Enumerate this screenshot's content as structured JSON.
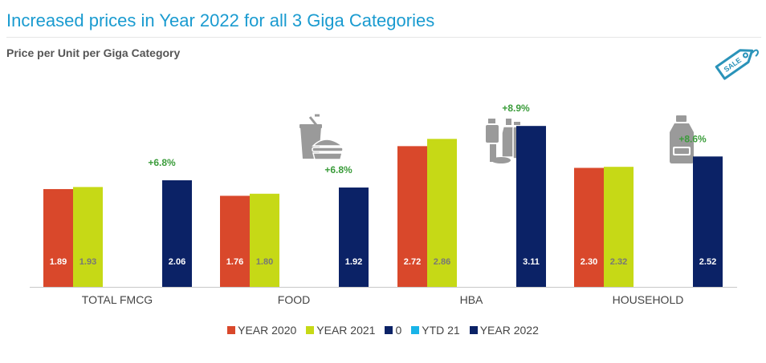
{
  "header": {
    "title": "Increased prices in Year 2022 for all 3 Giga Categories",
    "subtitle": "Price per Unit per Giga Category"
  },
  "icons": {
    "sale_tag_text": "SALE",
    "food": "food-icon",
    "hba": "hba-icon",
    "household": "household-icon",
    "sale": "sale-tag-icon"
  },
  "colors": {
    "year2020": "#d9482b",
    "year2021": "#c6d916",
    "zero": "#0b2266",
    "ytd21": "#19b4e8",
    "year2022": "#0b2266",
    "growth": "#3a9c3a",
    "icon": "#9a9a9a",
    "sale": "#2a93b9"
  },
  "chart_data": {
    "type": "bar",
    "categories": [
      "TOTAL FMCG",
      "FOOD",
      "HBA",
      "HOUSEHOLD"
    ],
    "series": [
      {
        "name": "YEAR 2020",
        "values": [
          1.89,
          1.76,
          2.72,
          2.3
        ],
        "labels": [
          "1.89",
          "1.76",
          "2.72",
          "2.30"
        ]
      },
      {
        "name": "YEAR 2021",
        "values": [
          1.93,
          1.8,
          2.86,
          2.32
        ],
        "labels": [
          "1.93",
          "1.80",
          "2.86",
          "2.32"
        ]
      },
      {
        "name": "0",
        "values": [
          null,
          null,
          null,
          null
        ],
        "labels": []
      },
      {
        "name": "YTD 21",
        "values": [
          null,
          null,
          null,
          null
        ],
        "labels": []
      },
      {
        "name": "YEAR 2022",
        "values": [
          2.06,
          1.92,
          3.11,
          2.52
        ],
        "labels": [
          "2.06",
          "1.92",
          "3.11",
          "2.52"
        ]
      }
    ],
    "growth_labels": [
      "+6.8%",
      "+6.8%",
      "+8.9%",
      "+8.6%"
    ],
    "ylim": [
      0,
      3.5
    ],
    "grid": false,
    "legend": "bottom"
  }
}
